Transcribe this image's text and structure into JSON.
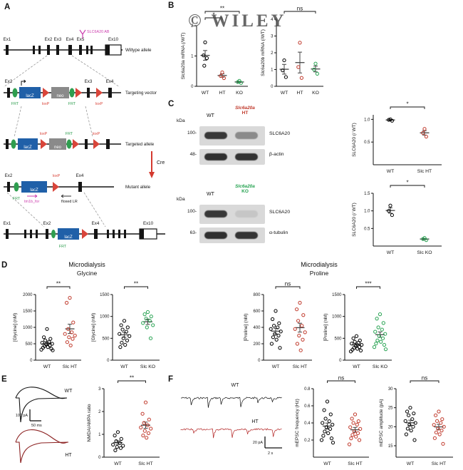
{
  "figure": {
    "watermark": "© WILEY"
  },
  "panels": {
    "A": "A",
    "B": "B",
    "C": "C",
    "D": "D",
    "E": "E",
    "F": "F"
  },
  "panelA": {
    "row_labels": {
      "wildtype": "Wiltype allele",
      "targeting": "Targeting vector",
      "targeted": "Targeted allele",
      "mutant": "Mutant allele"
    },
    "exons": {
      "ex1": "Ex1",
      "ex2": "Ex2",
      "ex3": "Ex3",
      "ex4": "Ex4",
      "ex5": "Ex5",
      "ex10": "Ex10"
    },
    "elements": {
      "lacz": "lacZ",
      "neo": "neo",
      "frt": "FRT",
      "loxp": "loxP",
      "cre": "Cre",
      "antibody": "SLC6A20 AB",
      "tm1b_for": "tm1b_for",
      "floxed_lr": "floxed LR"
    }
  },
  "panelC": {
    "blot1": {
      "kda": "kDa",
      "wt": "WT",
      "mut_line1": "Slc6a20a",
      "mut_line2": "HT",
      "mw1": "100-",
      "mw2": "48-",
      "band1": "SLC6A20",
      "band2": "β-actin"
    },
    "blot2": {
      "kda": "kDa",
      "wt": "WT",
      "mut_line1": "Slc6a20a",
      "mut_line2": "KO",
      "mw1": "100-",
      "mw2": "63-",
      "band1": "SLC6A20",
      "band2": "α-tubulin"
    }
  },
  "panelD": {
    "title_glycine": "Microdialysis",
    "subtitle_glycine": "Glycine",
    "title_proline": "Microdialysis",
    "subtitle_proline": "Proline"
  },
  "panelE": {
    "wt": "WT",
    "ht": "HT",
    "scale_v": "100 pA",
    "scale_h": "50 ms"
  },
  "panelF": {
    "wt": "WT",
    "ht": "HT",
    "scale_v": "20 pA",
    "scale_h": "2 s"
  },
  "chart_data": [
    {
      "id": "slc6a20a-mrna",
      "type": "scatter",
      "ylabel": "Slc6a20a mRNA (/WT)",
      "ylim": [
        0,
        2
      ],
      "yticks": [
        "0",
        "1",
        "2"
      ],
      "groups": [
        {
          "label": "WT",
          "color": "#000000",
          "values": [
            1.45,
            1.02,
            0.93,
            0.68
          ]
        },
        {
          "label": "HT",
          "color": "#c0392b",
          "values": [
            0.46,
            0.34,
            0.27
          ]
        },
        {
          "label": "KO",
          "color": "#27a352",
          "values": [
            0.18,
            0.14,
            0.11
          ]
        }
      ],
      "sig": [
        {
          "pair": [
            0,
            2
          ],
          "label": "**"
        },
        {
          "pair": [
            0,
            1
          ],
          "label": "*"
        }
      ]
    },
    {
      "id": "slc6a20b-mrna",
      "type": "scatter",
      "ylabel": "Slc6a20b mRNA (/WT)",
      "ylim": [
        0,
        4
      ],
      "yticks": [
        "0",
        "1",
        "2",
        "3",
        "4"
      ],
      "groups": [
        {
          "label": "WT",
          "color": "#000000",
          "values": [
            1.55,
            0.95,
            0.55
          ]
        },
        {
          "label": "HT",
          "color": "#c0392b",
          "values": [
            2.6,
            1.15,
            0.5
          ]
        },
        {
          "label": "KO",
          "color": "#27a352",
          "values": [
            1.35,
            1.0,
            0.75
          ]
        }
      ],
      "sig": [
        {
          "pair": [
            0,
            2
          ],
          "label": "ns"
        }
      ]
    },
    {
      "id": "slc6a20-protein-ht",
      "type": "scatter",
      "ylabel": "SLC6A20 (/ WT)",
      "ylim": [
        0,
        1.1
      ],
      "yticks": [
        "0.5",
        "1.0"
      ],
      "groups": [
        {
          "label": "WT",
          "color": "#000000",
          "values": [
            1.0,
            0.99,
            0.97
          ]
        },
        {
          "label": "Slc HT",
          "color": "#c0392b",
          "values": [
            0.79,
            0.7,
            0.62
          ]
        }
      ],
      "sig": [
        {
          "pair": [
            0,
            1
          ],
          "label": "*"
        }
      ]
    },
    {
      "id": "slc6a20-protein-ko",
      "type": "scatter",
      "ylabel": "SLC6A20 (/ WT)",
      "ylim": [
        0,
        1.5
      ],
      "yticks": [
        "0.5",
        "1.0",
        "1.5"
      ],
      "groups": [
        {
          "label": "WT",
          "color": "#000000",
          "values": [
            1.15,
            1.0,
            0.88
          ]
        },
        {
          "label": "Slc KO",
          "color": "#27a352",
          "values": [
            0.23,
            0.2,
            0.17
          ]
        }
      ],
      "sig": [
        {
          "pair": [
            0,
            1
          ],
          "label": "*"
        }
      ]
    },
    {
      "id": "glycine-ht",
      "type": "scatter",
      "ylabel": "[Glycine] (nM)",
      "ylim": [
        0,
        2000
      ],
      "yticks": [
        "0",
        "500",
        "1000",
        "1500",
        "2000"
      ],
      "groups": [
        {
          "label": "WT",
          "color": "#000000",
          "values": [
            950,
            700,
            650,
            600,
            560,
            530,
            500,
            480,
            450,
            430,
            400,
            380,
            350,
            320,
            300
          ]
        },
        {
          "label": "Slc HT",
          "color": "#c0392b",
          "values": [
            1900,
            1750,
            1150,
            950,
            850,
            800,
            750,
            700,
            650,
            550,
            450
          ]
        }
      ],
      "sig": [
        {
          "pair": [
            0,
            1
          ],
          "label": "**"
        }
      ]
    },
    {
      "id": "glycine-ko",
      "type": "scatter",
      "ylabel": "[Glycine] (nM)",
      "ylim": [
        0,
        1500
      ],
      "yticks": [
        "0",
        "500",
        "1000",
        "1500"
      ],
      "groups": [
        {
          "label": "WT",
          "color": "#000000",
          "values": [
            900,
            800,
            750,
            700,
            650,
            600,
            550,
            500,
            450,
            400,
            350,
            300
          ]
        },
        {
          "label": "Slc KO",
          "color": "#27a352",
          "values": [
            1100,
            1050,
            1000,
            950,
            900,
            850,
            800,
            750,
            500
          ]
        }
      ],
      "sig": [
        {
          "pair": [
            0,
            1
          ],
          "label": "**"
        }
      ]
    },
    {
      "id": "proline-ht",
      "type": "scatter",
      "ylabel": "[Proline] (nM)",
      "ylim": [
        0,
        800
      ],
      "yticks": [
        "0",
        "200",
        "400",
        "600",
        "800"
      ],
      "groups": [
        {
          "label": "WT",
          "color": "#000000",
          "values": [
            600,
            500,
            450,
            420,
            400,
            380,
            350,
            320,
            300,
            280,
            250,
            200,
            150
          ]
        },
        {
          "label": "Slc HT",
          "color": "#c0392b",
          "values": [
            700,
            620,
            550,
            480,
            420,
            380,
            340,
            300,
            250,
            200,
            120
          ]
        }
      ],
      "sig": [
        {
          "pair": [
            0,
            1
          ],
          "label": "ns"
        }
      ]
    },
    {
      "id": "proline-ko",
      "type": "scatter",
      "ylabel": "[Proline] (nM)",
      "ylim": [
        0,
        1500
      ],
      "yticks": [
        "0",
        "500",
        "1000",
        "1500"
      ],
      "groups": [
        {
          "label": "WT",
          "color": "#000000",
          "values": [
            550,
            500,
            450,
            420,
            400,
            380,
            350,
            330,
            300,
            280,
            260,
            240,
            220,
            200
          ]
        },
        {
          "label": "Slc KO",
          "color": "#27a352",
          "values": [
            1050,
            950,
            850,
            750,
            700,
            650,
            600,
            550,
            500,
            450,
            420,
            380,
            350,
            300,
            250
          ]
        }
      ],
      "sig": [
        {
          "pair": [
            0,
            1
          ],
          "label": "***"
        }
      ]
    },
    {
      "id": "nmda-ampa-ratio",
      "type": "scatter",
      "ylabel": "NMDA/AMPA ratio",
      "ylim": [
        0,
        3
      ],
      "yticks": [
        "0",
        "1",
        "2",
        "3"
      ],
      "groups": [
        {
          "label": "WT",
          "color": "#000000",
          "values": [
            1.1,
            0.95,
            0.8,
            0.7,
            0.62,
            0.55,
            0.5,
            0.45,
            0.4,
            0.3
          ]
        },
        {
          "label": "Slc HT",
          "color": "#c0392b",
          "values": [
            2.4,
            1.9,
            1.65,
            1.5,
            1.4,
            1.3,
            1.25,
            1.15,
            1.05,
            0.95,
            0.85
          ]
        }
      ],
      "sig": [
        {
          "pair": [
            0,
            1
          ],
          "label": "**"
        }
      ]
    },
    {
      "id": "mepsc-frequency",
      "type": "scatter",
      "ylabel": "mEPSC frequency (Hz)",
      "ylim": [
        0,
        0.8
      ],
      "yticks": [
        "0.2",
        "0.4",
        "0.6",
        "0.8"
      ],
      "groups": [
        {
          "label": "WT",
          "color": "#000000",
          "values": [
            0.65,
            0.55,
            0.5,
            0.45,
            0.42,
            0.4,
            0.38,
            0.35,
            0.33,
            0.3,
            0.28,
            0.25,
            0.22,
            0.2,
            0.17
          ]
        },
        {
          "label": "Slc HT",
          "color": "#c0392b",
          "values": [
            0.5,
            0.45,
            0.42,
            0.4,
            0.38,
            0.35,
            0.33,
            0.3,
            0.28,
            0.26,
            0.24,
            0.22,
            0.2,
            0.15
          ]
        }
      ],
      "sig": [
        {
          "pair": [
            0,
            1
          ],
          "label": "ns"
        }
      ]
    },
    {
      "id": "mepsc-amplitude",
      "type": "scatter",
      "ylabel": "mEPSC amplitude (pA)",
      "ylim": [
        12,
        30
      ],
      "yticks": [
        "15",
        "20",
        "25",
        "30"
      ],
      "groups": [
        {
          "label": "WT",
          "color": "#000000",
          "values": [
            25,
            24,
            23.5,
            23,
            22,
            21.5,
            21,
            20.5,
            20,
            19.5,
            19,
            18,
            16.5
          ]
        },
        {
          "label": "Slc HT",
          "color": "#c0392b",
          "values": [
            24,
            23,
            22,
            21.5,
            21,
            20.5,
            20,
            19.5,
            19,
            18.5,
            18,
            17,
            15.5
          ]
        }
      ],
      "sig": [
        {
          "pair": [
            0,
            1
          ],
          "label": "ns"
        }
      ]
    }
  ]
}
